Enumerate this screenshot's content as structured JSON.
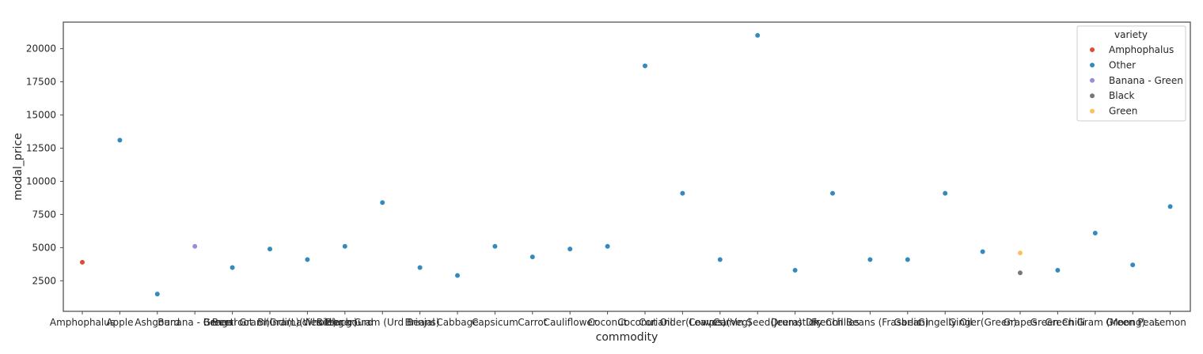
{
  "chart_data": {
    "type": "scatter",
    "title": "",
    "xlabel": "commodity",
    "ylabel": "modal_price",
    "ylim": [
      200,
      22000
    ],
    "yticks": [
      2500,
      5000,
      7500,
      10000,
      12500,
      15000,
      17500,
      20000
    ],
    "grid": false,
    "categories": [
      "Amphophalus",
      "Apple",
      "Ashgourd",
      "Banana - Green",
      "Beetroot",
      "Bengal Gram(Gram)(Whole)",
      "Bhindi(Ladies Finger)",
      "Bitter gourd",
      "Black Gram (Urd Beans)",
      "Brinjal",
      "Cabbage",
      "Capsicum",
      "Carrot",
      "Cauliflower",
      "Coconut",
      "Coconut Oil",
      "Coriander(Leaves)",
      "Cowpea(Veg)",
      "Cumin Seed(Jeera)",
      "Drumstick",
      "Dry Chillies",
      "French Beans (Frasbean)",
      "Garlic",
      "Gingelly Oil",
      "Ginger(Green)",
      "Grapes",
      "Green Chilli",
      "Green Gram (Moong)",
      "Green Peas",
      "Lemon"
    ],
    "legend": {
      "title": "variety",
      "position": "upper right",
      "entries": [
        {
          "name": "Amphophalus",
          "color": "#e24a33"
        },
        {
          "name": "Other",
          "color": "#348abd"
        },
        {
          "name": "Banana - Green",
          "color": "#988ed5"
        },
        {
          "name": "Black",
          "color": "#777777"
        },
        {
          "name": "Green",
          "color": "#fbc15e"
        }
      ]
    },
    "points": [
      {
        "x": "Amphophalus",
        "y": 3900,
        "variety": "Amphophalus"
      },
      {
        "x": "Apple",
        "y": 13100,
        "variety": "Other"
      },
      {
        "x": "Ashgourd",
        "y": 1500,
        "variety": "Other"
      },
      {
        "x": "Banana - Green",
        "y": 5100,
        "variety": "Banana - Green"
      },
      {
        "x": "Beetroot",
        "y": 3500,
        "variety": "Other"
      },
      {
        "x": "Bengal Gram(Gram)(Whole)",
        "y": 4900,
        "variety": "Other"
      },
      {
        "x": "Bhindi(Ladies Finger)",
        "y": 4100,
        "variety": "Other"
      },
      {
        "x": "Bitter gourd",
        "y": 5100,
        "variety": "Other"
      },
      {
        "x": "Black Gram (Urd Beans)",
        "y": 8400,
        "variety": "Other"
      },
      {
        "x": "Brinjal",
        "y": 3500,
        "variety": "Other"
      },
      {
        "x": "Cabbage",
        "y": 2900,
        "variety": "Other"
      },
      {
        "x": "Capsicum",
        "y": 5100,
        "variety": "Other"
      },
      {
        "x": "Carrot",
        "y": 4300,
        "variety": "Other"
      },
      {
        "x": "Cauliflower",
        "y": 4900,
        "variety": "Other"
      },
      {
        "x": "Coconut",
        "y": 5100,
        "variety": "Other"
      },
      {
        "x": "Coconut Oil",
        "y": 18700,
        "variety": "Other"
      },
      {
        "x": "Coriander(Leaves)",
        "y": 9100,
        "variety": "Other"
      },
      {
        "x": "Cowpea(Veg)",
        "y": 4100,
        "variety": "Other"
      },
      {
        "x": "Cumin Seed(Jeera)",
        "y": 21000,
        "variety": "Other"
      },
      {
        "x": "Drumstick",
        "y": 3300,
        "variety": "Other"
      },
      {
        "x": "Dry Chillies",
        "y": 9100,
        "variety": "Other"
      },
      {
        "x": "French Beans (Frasbean)",
        "y": 4100,
        "variety": "Other"
      },
      {
        "x": "Garlic",
        "y": 4100,
        "variety": "Other"
      },
      {
        "x": "Gingelly Oil",
        "y": 9100,
        "variety": "Other"
      },
      {
        "x": "Ginger(Green)",
        "y": 4700,
        "variety": "Other"
      },
      {
        "x": "Grapes",
        "y": 4600,
        "variety": "Green"
      },
      {
        "x": "Grapes",
        "y": 3100,
        "variety": "Black"
      },
      {
        "x": "Green Chilli",
        "y": 3300,
        "variety": "Other"
      },
      {
        "x": "Green Gram (Moong)",
        "y": 6100,
        "variety": "Other"
      },
      {
        "x": "Green Peas",
        "y": 3700,
        "variety": "Other"
      },
      {
        "x": "Lemon",
        "y": 8100,
        "variety": "Other"
      }
    ]
  }
}
